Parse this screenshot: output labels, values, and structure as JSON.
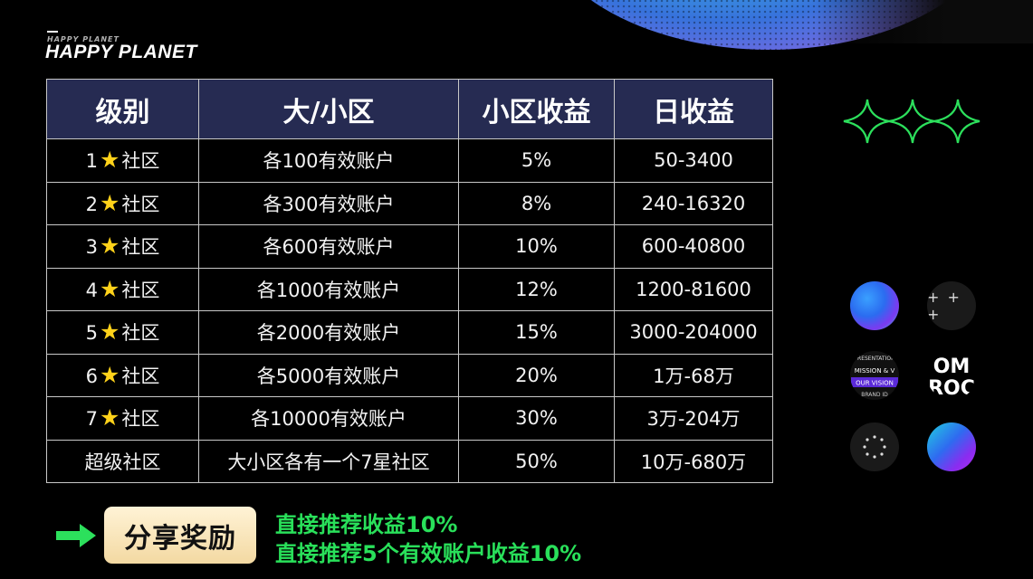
{
  "brand": {
    "name": "HAPPY PLANET",
    "sub": "HAPPY PLANET"
  },
  "table": {
    "headers": [
      "级别",
      "大/小区",
      "小区收益",
      "日收益"
    ],
    "rows": [
      {
        "level_num": "1",
        "level_suffix": "社区",
        "area": "各100有效账户",
        "income_rate": "5%",
        "daily": "50-3400"
      },
      {
        "level_num": "2",
        "level_suffix": "社区",
        "area": "各300有效账户",
        "income_rate": "8%",
        "daily": "240-16320"
      },
      {
        "level_num": "3",
        "level_suffix": "社区",
        "area": "各600有效账户",
        "income_rate": "10%",
        "daily": "600-40800"
      },
      {
        "level_num": "4",
        "level_suffix": "社区",
        "area": "各1000有效账户",
        "income_rate": "12%",
        "daily": "1200-81600"
      },
      {
        "level_num": "5",
        "level_suffix": "社区",
        "area": "各2000有效账户",
        "income_rate": "15%",
        "daily": "3000-204000"
      },
      {
        "level_num": "6",
        "level_suffix": "社区",
        "area": "各5000有效账户",
        "income_rate": "20%",
        "daily": "1万-68万"
      },
      {
        "level_num": "7",
        "level_suffix": "社区",
        "area": "各10000有效账户",
        "income_rate": "30%",
        "daily": "3万-204万"
      }
    ],
    "super_row": {
      "level": "超级社区",
      "area": "大小区各有一个7星社区",
      "income_rate": "50%",
      "daily": "10万-680万"
    }
  },
  "share": {
    "button_label": "分享奖励",
    "line1": "直接推荐收益10%",
    "line2": "直接推荐5个有效账户收益10%"
  },
  "icons": {
    "plus_row": "+ + +",
    "mission_lines": [
      "PRESENTATION",
      "MISSION & V",
      "OUR VISION",
      "BRAND ID"
    ],
    "logo_text_top": "OM",
    "logo_text_bottom": "ROC"
  },
  "colors": {
    "header_bg": "#262b52",
    "star": "#ffd21a",
    "accent_green": "#29e05a",
    "button_bg": "#f3d9a2"
  }
}
